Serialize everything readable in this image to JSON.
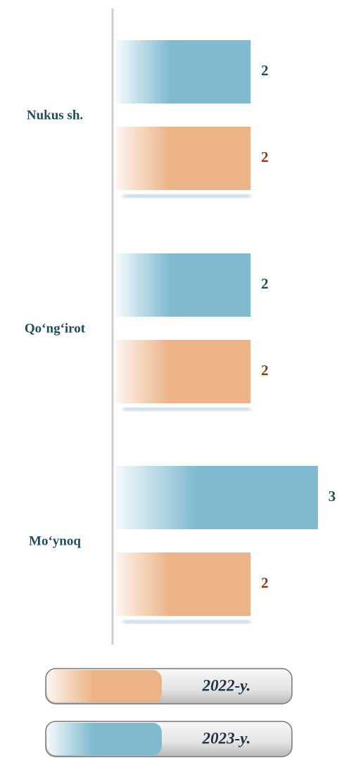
{
  "chart_data": {
    "type": "bar",
    "orientation": "horizontal",
    "categories": [
      "Nukus sh.",
      "Qo‘ng‘irot",
      "Mo‘ynoq"
    ],
    "series": [
      {
        "name": "2023-y.",
        "color": "#7fbad0",
        "label_color": "#1d4e5f",
        "values": [
          2,
          2,
          3
        ]
      },
      {
        "name": "2022-y.",
        "color": "#ebb386",
        "label_color": "#8b3a0f",
        "values": [
          2,
          2,
          2
        ]
      }
    ]
  }
}
